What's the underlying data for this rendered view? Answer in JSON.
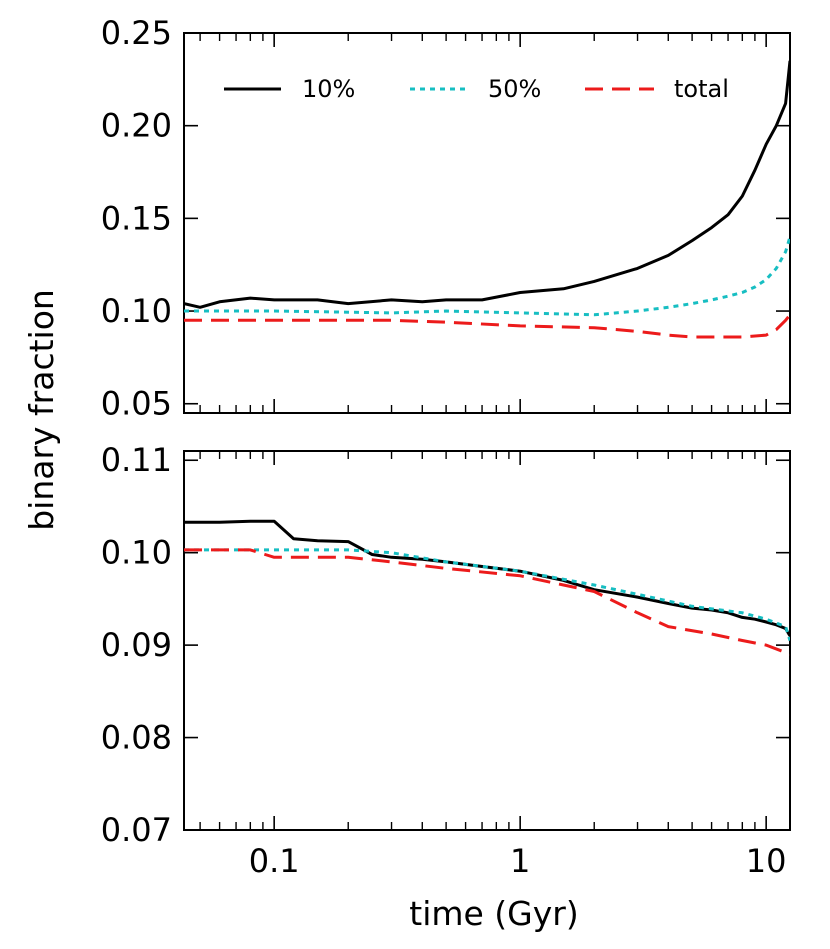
{
  "chart_data": [
    {
      "type": "line",
      "panel": "top",
      "xscale": "log",
      "xlim": [
        0.043,
        12.5
      ],
      "ylim": [
        0.045,
        0.25
      ],
      "yticks": [
        0.05,
        0.1,
        0.15,
        0.2,
        0.25
      ],
      "ytick_labels": [
        "0.05",
        "0.10",
        "0.15",
        "0.20",
        "0.25"
      ],
      "ylabel": "binary fraction",
      "legend": {
        "position": "top",
        "entries": [
          "10%",
          "50%",
          "total"
        ]
      },
      "series": [
        {
          "name": "10%",
          "color": "#000000",
          "dash": "solid",
          "x": [
            0.043,
            0.05,
            0.06,
            0.08,
            0.1,
            0.15,
            0.2,
            0.3,
            0.4,
            0.5,
            0.7,
            1.0,
            1.5,
            2.0,
            3.0,
            4.0,
            5.0,
            6.0,
            7.0,
            8.0,
            9.0,
            10.0,
            11.0,
            12.0,
            12.5
          ],
          "y": [
            0.104,
            0.102,
            0.105,
            0.107,
            0.106,
            0.106,
            0.104,
            0.106,
            0.105,
            0.106,
            0.106,
            0.11,
            0.112,
            0.116,
            0.123,
            0.13,
            0.138,
            0.145,
            0.152,
            0.162,
            0.176,
            0.19,
            0.2,
            0.212,
            0.235
          ]
        },
        {
          "name": "50%",
          "color": "#17bec2",
          "dash": "dotted",
          "x": [
            0.043,
            0.1,
            0.3,
            0.5,
            1.0,
            2.0,
            3.0,
            4.0,
            5.0,
            6.0,
            7.0,
            8.0,
            9.0,
            10.0,
            11.0,
            12.0,
            12.5
          ],
          "y": [
            0.1,
            0.1,
            0.099,
            0.1,
            0.099,
            0.098,
            0.1,
            0.102,
            0.104,
            0.106,
            0.108,
            0.11,
            0.113,
            0.117,
            0.123,
            0.132,
            0.14
          ]
        },
        {
          "name": "total",
          "color": "#ec1b1b",
          "dash": "dashed",
          "x": [
            0.043,
            0.1,
            0.3,
            0.5,
            1.0,
            2.0,
            3.0,
            4.0,
            5.0,
            6.0,
            8.0,
            10.0,
            11.0,
            12.0,
            12.5
          ],
          "y": [
            0.095,
            0.095,
            0.095,
            0.094,
            0.092,
            0.091,
            0.089,
            0.087,
            0.086,
            0.086,
            0.086,
            0.087,
            0.09,
            0.095,
            0.098
          ]
        }
      ]
    },
    {
      "type": "line",
      "panel": "bottom",
      "xscale": "log",
      "xlim": [
        0.043,
        12.5
      ],
      "ylim": [
        0.07,
        0.111
      ],
      "yticks": [
        0.07,
        0.08,
        0.09,
        0.1,
        0.11
      ],
      "ytick_labels": [
        "0.07",
        "0.08",
        "0.09",
        "0.10",
        "0.11"
      ],
      "xticks": [
        0.1,
        1,
        10
      ],
      "xtick_labels": [
        "0.1",
        "1",
        "10"
      ],
      "xlabel": "time  (Gyr)",
      "series": [
        {
          "name": "10%",
          "color": "#000000",
          "dash": "solid",
          "x": [
            0.043,
            0.06,
            0.08,
            0.1,
            0.12,
            0.15,
            0.2,
            0.25,
            0.3,
            0.4,
            0.5,
            0.7,
            1.0,
            1.5,
            2.0,
            3.0,
            4.0,
            5.0,
            6.0,
            7.0,
            8.0,
            9.0,
            10.0,
            11.0,
            12.0,
            12.5
          ],
          "y": [
            0.1033,
            0.1033,
            0.1034,
            0.1034,
            0.1015,
            0.1013,
            0.1012,
            0.0998,
            0.0995,
            0.0993,
            0.099,
            0.0985,
            0.098,
            0.097,
            0.096,
            0.0952,
            0.0945,
            0.094,
            0.0938,
            0.0935,
            0.093,
            0.0928,
            0.0925,
            0.0922,
            0.0918,
            0.091
          ]
        },
        {
          "name": "50%",
          "color": "#17bec2",
          "dash": "dotted",
          "x": [
            0.043,
            0.1,
            0.2,
            0.3,
            0.5,
            1.0,
            2.0,
            3.0,
            5.0,
            8.0,
            10.0,
            12.0,
            12.5
          ],
          "y": [
            0.1003,
            0.1003,
            0.1003,
            0.1,
            0.099,
            0.098,
            0.0965,
            0.0955,
            0.0942,
            0.0935,
            0.0928,
            0.092,
            0.0905
          ]
        },
        {
          "name": "total",
          "color": "#ec1b1b",
          "dash": "dashed",
          "x": [
            0.043,
            0.08,
            0.1,
            0.2,
            0.3,
            0.5,
            1.0,
            1.5,
            2.0,
            3.0,
            4.0,
            6.0,
            8.0,
            10.0,
            12.0,
            12.5
          ],
          "y": [
            0.1003,
            0.1003,
            0.0995,
            0.0995,
            0.099,
            0.0983,
            0.0975,
            0.0965,
            0.0958,
            0.0935,
            0.092,
            0.0912,
            0.0905,
            0.09,
            0.0892,
            0.089
          ]
        }
      ]
    }
  ]
}
